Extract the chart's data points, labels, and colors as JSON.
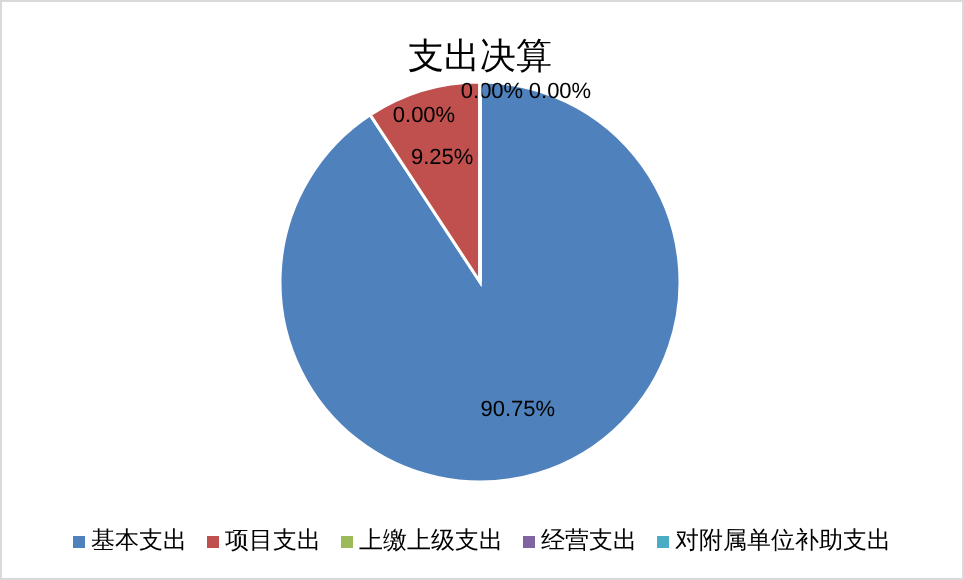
{
  "chart_data": {
    "type": "pie",
    "title": "支出决算",
    "categories": [
      "基本支出",
      "项目支出",
      "上缴上级支出",
      "经营支出",
      "对附属单位补助支出"
    ],
    "values": [
      90.75,
      9.25,
      0,
      0,
      0
    ],
    "colors": [
      "#4f81bd",
      "#c0504d",
      "#9bbb59",
      "#8064a2",
      "#4bacc6"
    ],
    "value_labels": [
      "90.75%",
      "9.25%",
      "0.00%",
      "0.00%",
      "0.00%"
    ],
    "legend": "bottom"
  }
}
